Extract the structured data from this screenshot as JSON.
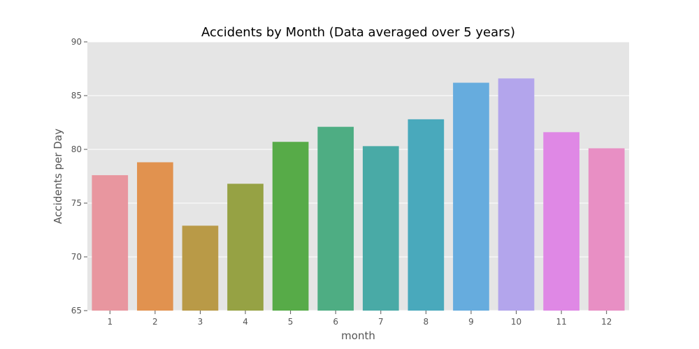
{
  "chart_data": {
    "type": "bar",
    "title": "Accidents by Month (Data averaged over 5 years)",
    "xlabel": "month",
    "ylabel": "Accidents per Day",
    "categories": [
      "1",
      "2",
      "3",
      "4",
      "5",
      "6",
      "7",
      "8",
      "9",
      "10",
      "11",
      "12"
    ],
    "values": [
      77.6,
      78.8,
      72.9,
      76.8,
      80.7,
      82.1,
      80.3,
      82.8,
      86.2,
      86.6,
      81.6,
      80.1
    ],
    "ylim": [
      65,
      90
    ],
    "yticks": [
      65,
      70,
      75,
      80,
      85,
      90
    ],
    "grid": true,
    "legend": false,
    "colors": [
      "#e8969f",
      "#e1924f",
      "#b99a47",
      "#96a244",
      "#57ab48",
      "#4ead83",
      "#49aaa6",
      "#49a9bc",
      "#66acde",
      "#b3a5ec",
      "#df88e5",
      "#e88fc4"
    ],
    "background_color": "#e5e5e5"
  }
}
